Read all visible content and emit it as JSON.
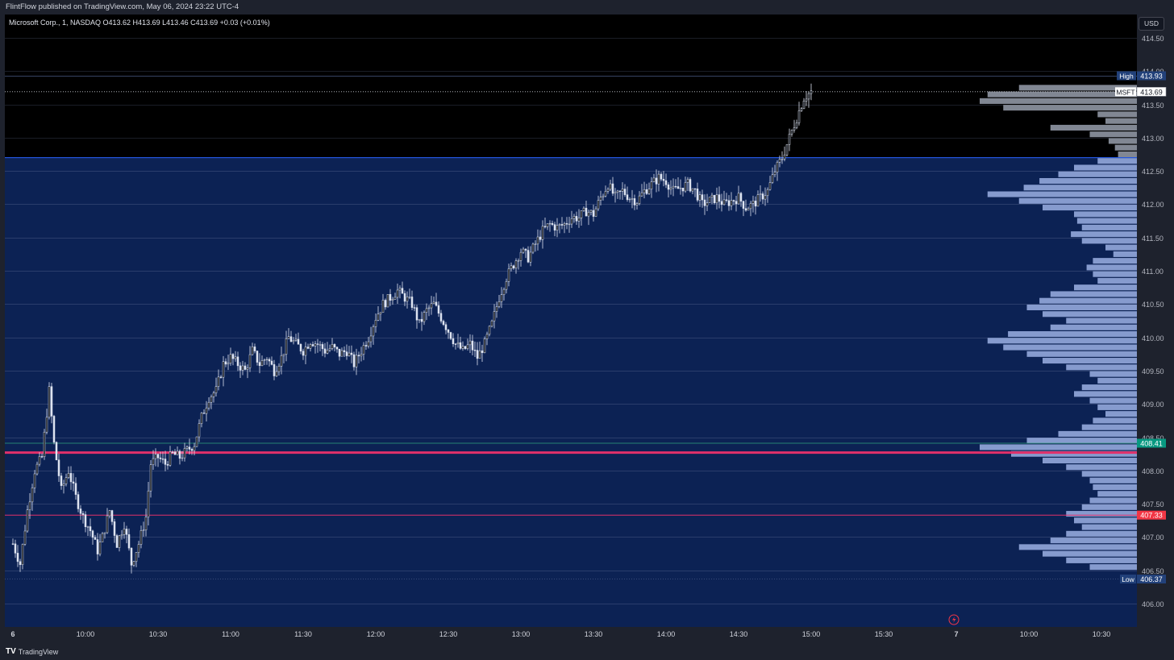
{
  "header": {
    "published": "FlintFlow published on TradingView.com, May 06, 2024 23:22 UTC-4",
    "symbol_line": "Microsoft Corp., 1, NASDAQ  O413.62  H413.69  L413.46  C413.69  +0.03 (+0.01%)"
  },
  "currency_button": "USD",
  "footer": {
    "logo": "TV",
    "brand": "TradingView"
  },
  "colors": {
    "zone_fill": "#0c2254",
    "zone_line": "#2962ff",
    "candle": "#dde3f0",
    "vp_top": "#8f96a3",
    "vp_zone": "#94a9dc",
    "poc_line": "#e0306a",
    "green_tag": "#089981",
    "red_tag": "#f23645",
    "blue_tag": "#22417a"
  },
  "chart_data": {
    "type": "candlestick",
    "symbol": "MSFT",
    "timeframe": "1",
    "ylim": [
      405.65,
      414.85
    ],
    "y_ticks": [
      "414.50",
      "414.00",
      "413.50",
      "413.00",
      "412.50",
      "412.00",
      "411.50",
      "411.00",
      "410.50",
      "410.00",
      "409.50",
      "409.00",
      "408.50",
      "408.00",
      "407.50",
      "407.00",
      "406.50",
      "406.00"
    ],
    "y_tick_values": [
      414.5,
      414.0,
      413.5,
      413.0,
      412.5,
      412.0,
      411.5,
      411.0,
      410.5,
      410.0,
      409.5,
      409.0,
      408.5,
      408.0,
      407.5,
      407.0,
      406.5,
      406.0
    ],
    "x_ticks": [
      "6",
      "10:00",
      "10:30",
      "11:00",
      "11:30",
      "12:00",
      "12:30",
      "13:00",
      "13:30",
      "14:00",
      "14:30",
      "15:00",
      "15:30",
      "7",
      "10:00",
      "10:30"
    ],
    "x_tick_minutes": [
      0,
      30,
      60,
      90,
      120,
      150,
      180,
      210,
      240,
      270,
      300,
      330,
      360,
      390,
      420,
      450
    ],
    "session_start": "09:30",
    "price_path": [
      [
        0,
        406.9
      ],
      [
        3,
        406.6
      ],
      [
        6,
        407.4
      ],
      [
        9,
        408.0
      ],
      [
        12,
        408.2
      ],
      [
        15,
        409.2
      ],
      [
        17,
        408.4
      ],
      [
        20,
        407.7
      ],
      [
        23,
        408.0
      ],
      [
        26,
        407.6
      ],
      [
        29,
        407.3
      ],
      [
        32,
        407.1
      ],
      [
        35,
        406.8
      ],
      [
        37,
        407.0
      ],
      [
        40,
        407.4
      ],
      [
        43,
        406.9
      ],
      [
        46,
        407.2
      ],
      [
        49,
        406.6
      ],
      [
        52,
        406.9
      ],
      [
        55,
        407.3
      ],
      [
        57,
        408.1
      ],
      [
        60,
        408.2
      ],
      [
        63,
        408.1
      ],
      [
        66,
        408.25
      ],
      [
        69,
        408.2
      ],
      [
        72,
        408.3
      ],
      [
        75,
        408.4
      ],
      [
        78,
        408.8
      ],
      [
        81,
        409.1
      ],
      [
        84,
        409.2
      ],
      [
        87,
        409.6
      ],
      [
        90,
        409.7
      ],
      [
        93,
        409.6
      ],
      [
        96,
        409.5
      ],
      [
        99,
        409.8
      ],
      [
        102,
        409.6
      ],
      [
        105,
        409.7
      ],
      [
        108,
        409.5
      ],
      [
        111,
        409.7
      ],
      [
        114,
        410.0
      ],
      [
        117,
        409.9
      ],
      [
        120,
        409.8
      ],
      [
        123,
        409.95
      ],
      [
        126,
        409.9
      ],
      [
        129,
        409.8
      ],
      [
        132,
        409.85
      ],
      [
        135,
        409.75
      ],
      [
        138,
        409.8
      ],
      [
        141,
        409.6
      ],
      [
        144,
        409.8
      ],
      [
        147,
        410.0
      ],
      [
        150,
        410.3
      ],
      [
        153,
        410.5
      ],
      [
        156,
        410.6
      ],
      [
        159,
        410.7
      ],
      [
        162,
        410.6
      ],
      [
        165,
        410.5
      ],
      [
        168,
        410.2
      ],
      [
        171,
        410.4
      ],
      [
        174,
        410.5
      ],
      [
        177,
        410.3
      ],
      [
        180,
        410.1
      ],
      [
        183,
        409.9
      ],
      [
        186,
        409.8
      ],
      [
        189,
        409.9
      ],
      [
        192,
        409.7
      ],
      [
        195,
        409.9
      ],
      [
        198,
        410.2
      ],
      [
        201,
        410.6
      ],
      [
        204,
        410.9
      ],
      [
        207,
        411.1
      ],
      [
        210,
        411.3
      ],
      [
        213,
        411.2
      ],
      [
        216,
        411.4
      ],
      [
        219,
        411.6
      ],
      [
        222,
        411.7
      ],
      [
        225,
        411.65
      ],
      [
        228,
        411.7
      ],
      [
        231,
        411.8
      ],
      [
        234,
        411.8
      ],
      [
        237,
        411.9
      ],
      [
        240,
        411.85
      ],
      [
        243,
        412.1
      ],
      [
        246,
        412.3
      ],
      [
        249,
        412.1
      ],
      [
        252,
        412.2
      ],
      [
        255,
        412.1
      ],
      [
        258,
        412.05
      ],
      [
        261,
        412.2
      ],
      [
        264,
        412.3
      ],
      [
        267,
        412.4
      ],
      [
        270,
        412.35
      ],
      [
        273,
        412.2
      ],
      [
        276,
        412.25
      ],
      [
        279,
        412.3
      ],
      [
        282,
        412.2
      ],
      [
        285,
        412.0
      ],
      [
        288,
        412.05
      ],
      [
        291,
        412.1
      ],
      [
        294,
        412.0
      ],
      [
        297,
        412.05
      ],
      [
        300,
        412.1
      ],
      [
        303,
        411.95
      ],
      [
        306,
        412.0
      ],
      [
        309,
        412.1
      ],
      [
        312,
        412.2
      ],
      [
        315,
        412.5
      ],
      [
        318,
        412.7
      ],
      [
        321,
        413.0
      ],
      [
        324,
        413.3
      ],
      [
        327,
        413.6
      ],
      [
        330,
        413.69
      ]
    ],
    "volume_profile_bins": [
      [
        413.75,
        0.75
      ],
      [
        413.65,
        0.95
      ],
      [
        413.55,
        1.0
      ],
      [
        413.45,
        0.85
      ],
      [
        413.35,
        0.25
      ],
      [
        413.25,
        0.2
      ],
      [
        413.15,
        0.55
      ],
      [
        413.05,
        0.3
      ],
      [
        412.95,
        0.18
      ],
      [
        412.85,
        0.14
      ],
      [
        412.75,
        0.12
      ],
      [
        412.65,
        0.25
      ],
      [
        412.55,
        0.4
      ],
      [
        412.45,
        0.5
      ],
      [
        412.35,
        0.62
      ],
      [
        412.25,
        0.72
      ],
      [
        412.15,
        0.95
      ],
      [
        412.05,
        0.75
      ],
      [
        411.95,
        0.6
      ],
      [
        411.85,
        0.4
      ],
      [
        411.75,
        0.38
      ],
      [
        411.65,
        0.35
      ],
      [
        411.55,
        0.42
      ],
      [
        411.45,
        0.35
      ],
      [
        411.35,
        0.2
      ],
      [
        411.25,
        0.15
      ],
      [
        411.15,
        0.28
      ],
      [
        411.05,
        0.32
      ],
      [
        410.95,
        0.28
      ],
      [
        410.85,
        0.25
      ],
      [
        410.75,
        0.4
      ],
      [
        410.65,
        0.55
      ],
      [
        410.55,
        0.62
      ],
      [
        410.45,
        0.7
      ],
      [
        410.35,
        0.6
      ],
      [
        410.25,
        0.45
      ],
      [
        410.15,
        0.55
      ],
      [
        410.05,
        0.82
      ],
      [
        409.95,
        0.95
      ],
      [
        409.85,
        0.85
      ],
      [
        409.75,
        0.7
      ],
      [
        409.65,
        0.6
      ],
      [
        409.55,
        0.45
      ],
      [
        409.45,
        0.3
      ],
      [
        409.35,
        0.25
      ],
      [
        409.25,
        0.35
      ],
      [
        409.15,
        0.4
      ],
      [
        409.05,
        0.3
      ],
      [
        408.95,
        0.25
      ],
      [
        408.85,
        0.2
      ],
      [
        408.75,
        0.28
      ],
      [
        408.65,
        0.35
      ],
      [
        408.55,
        0.5
      ],
      [
        408.45,
        0.7
      ],
      [
        408.35,
        1.0
      ],
      [
        408.25,
        0.8
      ],
      [
        408.15,
        0.6
      ],
      [
        408.05,
        0.45
      ],
      [
        407.95,
        0.35
      ],
      [
        407.85,
        0.3
      ],
      [
        407.75,
        0.28
      ],
      [
        407.65,
        0.25
      ],
      [
        407.55,
        0.3
      ],
      [
        407.45,
        0.35
      ],
      [
        407.35,
        0.45
      ],
      [
        407.25,
        0.4
      ],
      [
        407.15,
        0.35
      ],
      [
        407.05,
        0.45
      ],
      [
        406.95,
        0.55
      ],
      [
        406.85,
        0.75
      ],
      [
        406.75,
        0.6
      ],
      [
        406.65,
        0.45
      ],
      [
        406.55,
        0.3
      ]
    ],
    "zone": {
      "top": 412.7,
      "bottom": 405.65
    },
    "levels": [
      {
        "name": "High",
        "value": 413.93,
        "label": "413.93"
      },
      {
        "name": "MSFT",
        "value": 413.69,
        "label": "413.69"
      },
      {
        "name": "",
        "value": 408.41,
        "label": "408.41"
      },
      {
        "name": "",
        "value": 408.27,
        "label": ""
      },
      {
        "name": "",
        "value": 407.33,
        "label": "407.33"
      },
      {
        "name": "Low",
        "value": 406.37,
        "label": "406.37"
      }
    ],
    "high": 413.93,
    "low": 406.37,
    "last": 413.69
  }
}
